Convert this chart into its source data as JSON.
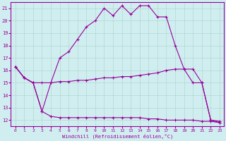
{
  "xlabel": "Windchill (Refroidissement éolien,°C)",
  "background_color": "#d0eef0",
  "grid_color": "#b0d8d0",
  "line_color": "#990099",
  "xlim": [
    -0.5,
    23.5
  ],
  "ylim": [
    11.5,
    21.5
  ],
  "yticks": [
    12,
    13,
    14,
    15,
    16,
    17,
    18,
    19,
    20,
    21
  ],
  "xticks": [
    0,
    1,
    2,
    3,
    4,
    5,
    6,
    7,
    8,
    9,
    10,
    11,
    12,
    13,
    14,
    15,
    16,
    17,
    18,
    19,
    20,
    21,
    22,
    23
  ],
  "line_upper_x": [
    0,
    1,
    2,
    3,
    4,
    5,
    6,
    7,
    8,
    9,
    10,
    11,
    12,
    13,
    14,
    15,
    16,
    17,
    18,
    19,
    20,
    21,
    22,
    23
  ],
  "line_upper_y": [
    16.3,
    15.4,
    15.0,
    12.7,
    15.0,
    17.0,
    17.5,
    18.5,
    19.5,
    20.0,
    21.0,
    20.4,
    21.2,
    20.5,
    21.2,
    21.2,
    20.3,
    20.3,
    18.0,
    16.1,
    16.1,
    15.0,
    12.0,
    11.8
  ],
  "line_mid_x": [
    0,
    1,
    2,
    3,
    4,
    5,
    6,
    7,
    8,
    9,
    10,
    11,
    12,
    13,
    14,
    15,
    16,
    17,
    18,
    19,
    20,
    21,
    22,
    23
  ],
  "line_mid_y": [
    16.3,
    15.4,
    15.0,
    15.0,
    15.0,
    15.1,
    15.1,
    15.2,
    15.2,
    15.3,
    15.4,
    15.4,
    15.5,
    15.5,
    15.6,
    15.7,
    15.8,
    16.0,
    16.1,
    16.1,
    15.0,
    15.0,
    12.0,
    11.9
  ],
  "line_lower_x": [
    0,
    1,
    2,
    3,
    4,
    5,
    6,
    7,
    8,
    9,
    10,
    11,
    12,
    13,
    14,
    15,
    16,
    17,
    18,
    19,
    20,
    21,
    22,
    23
  ],
  "line_lower_y": [
    16.3,
    15.4,
    15.0,
    12.7,
    12.3,
    12.2,
    12.2,
    12.2,
    12.2,
    12.2,
    12.2,
    12.2,
    12.2,
    12.2,
    12.2,
    12.1,
    12.1,
    12.0,
    12.0,
    12.0,
    12.0,
    11.9,
    11.9,
    11.8
  ]
}
